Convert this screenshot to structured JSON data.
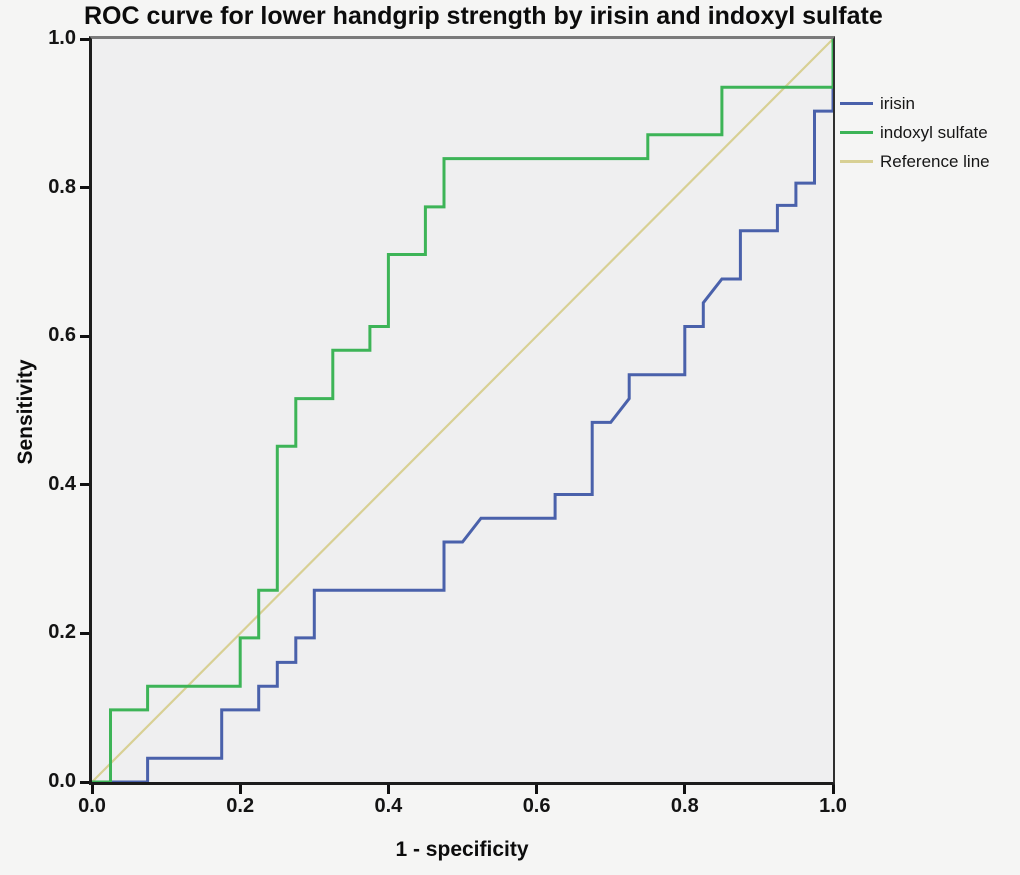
{
  "figure": {
    "background": "#f5f5f4",
    "plot_background": "#efeff0"
  },
  "chart_data": {
    "type": "line",
    "subtype": "roc-step-curves",
    "title": "ROC curve for lower handgrip strength by irisin and indoxyl sulfate",
    "xlabel": "1 - specificity",
    "ylabel": "Sensitivity",
    "xlim": [
      0.0,
      1.0
    ],
    "ylim": [
      0.0,
      1.0
    ],
    "xticks": [
      "0.0",
      "0.2",
      "0.4",
      "0.6",
      "0.8",
      "1.0"
    ],
    "yticks": [
      "0.0",
      "0.2",
      "0.4",
      "0.6",
      "0.8",
      "1.0"
    ],
    "grid": false,
    "legend_position": "outside-top-right",
    "legend_order": [
      "irisin",
      "indoxyl-sulfate",
      "reference-line"
    ],
    "series": [
      {
        "id": "reference-line",
        "label": "Reference line",
        "color": "#d8d094",
        "stroke_width": 2.2,
        "points": [
          [
            0,
            0
          ],
          [
            1,
            1
          ]
        ]
      },
      {
        "id": "irisin",
        "label": "irisin",
        "color": "#4a61ab",
        "stroke_width": 3,
        "points": [
          [
            0,
            0
          ],
          [
            0.075,
            0
          ],
          [
            0.075,
            0.032
          ],
          [
            0.175,
            0.032
          ],
          [
            0.175,
            0.097
          ],
          [
            0.225,
            0.097
          ],
          [
            0.225,
            0.129
          ],
          [
            0.25,
            0.129
          ],
          [
            0.25,
            0.161
          ],
          [
            0.275,
            0.161
          ],
          [
            0.275,
            0.194
          ],
          [
            0.3,
            0.194
          ],
          [
            0.3,
            0.258
          ],
          [
            0.475,
            0.258
          ],
          [
            0.475,
            0.323
          ],
          [
            0.5,
            0.323
          ],
          [
            0.525,
            0.355
          ],
          [
            0.625,
            0.355
          ],
          [
            0.625,
            0.387
          ],
          [
            0.675,
            0.387
          ],
          [
            0.675,
            0.484
          ],
          [
            0.7,
            0.484
          ],
          [
            0.725,
            0.516
          ],
          [
            0.725,
            0.548
          ],
          [
            0.8,
            0.548
          ],
          [
            0.8,
            0.613
          ],
          [
            0.825,
            0.613
          ],
          [
            0.825,
            0.645
          ],
          [
            0.85,
            0.677
          ],
          [
            0.875,
            0.677
          ],
          [
            0.875,
            0.742
          ],
          [
            0.925,
            0.742
          ],
          [
            0.925,
            0.776
          ],
          [
            0.95,
            0.776
          ],
          [
            0.95,
            0.806
          ],
          [
            0.975,
            0.806
          ],
          [
            0.975,
            0.903
          ],
          [
            1,
            0.903
          ],
          [
            1,
            1
          ]
        ]
      },
      {
        "id": "indoxyl-sulfate",
        "label": "indoxyl sulfate",
        "color": "#3db457",
        "stroke_width": 3,
        "points": [
          [
            0,
            0
          ],
          [
            0.025,
            0
          ],
          [
            0.025,
            0.097
          ],
          [
            0.075,
            0.097
          ],
          [
            0.075,
            0.129
          ],
          [
            0.2,
            0.129
          ],
          [
            0.2,
            0.194
          ],
          [
            0.225,
            0.194
          ],
          [
            0.225,
            0.258
          ],
          [
            0.25,
            0.258
          ],
          [
            0.25,
            0.452
          ],
          [
            0.275,
            0.452
          ],
          [
            0.275,
            0.516
          ],
          [
            0.325,
            0.516
          ],
          [
            0.325,
            0.581
          ],
          [
            0.375,
            0.581
          ],
          [
            0.375,
            0.613
          ],
          [
            0.4,
            0.613
          ],
          [
            0.4,
            0.71
          ],
          [
            0.45,
            0.71
          ],
          [
            0.45,
            0.774
          ],
          [
            0.475,
            0.774
          ],
          [
            0.475,
            0.839
          ],
          [
            0.75,
            0.839
          ],
          [
            0.75,
            0.871
          ],
          [
            0.85,
            0.871
          ],
          [
            0.85,
            0.935
          ],
          [
            1,
            0.935
          ],
          [
            1,
            1
          ]
        ]
      }
    ]
  }
}
